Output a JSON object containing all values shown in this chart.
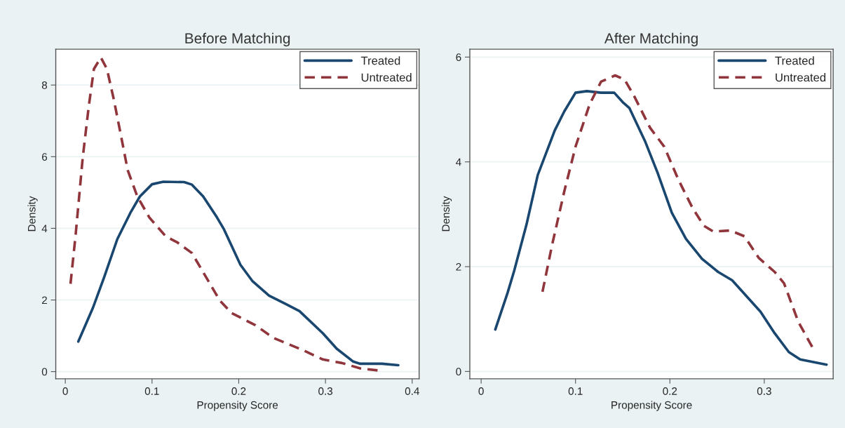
{
  "chart_data": [
    {
      "type": "line",
      "title": "Before Matching",
      "xlabel": "Propensity Score",
      "ylabel": "Density",
      "xlim": [
        -0.011,
        0.408
      ],
      "xticks": [
        0,
        0.1,
        0.2,
        0.3,
        0.4
      ],
      "ylim": [
        -0.2,
        9.0
      ],
      "yticks": [
        0,
        2,
        4,
        6,
        8
      ],
      "grid": "y",
      "legend": "top right",
      "series": [
        {
          "name": "Treated",
          "color": "#1a476f",
          "line_style": "solid",
          "x": [
            0.015,
            0.032,
            0.045,
            0.06,
            0.075,
            0.086,
            0.1,
            0.113,
            0.137,
            0.146,
            0.159,
            0.175,
            0.183,
            0.202,
            0.216,
            0.235,
            0.254,
            0.27,
            0.297,
            0.313,
            0.332,
            0.34,
            0.365,
            0.384
          ],
          "values": [
            0.84,
            1.79,
            2.65,
            3.7,
            4.43,
            4.89,
            5.23,
            5.3,
            5.29,
            5.22,
            4.89,
            4.3,
            3.97,
            2.98,
            2.52,
            2.12,
            1.89,
            1.69,
            1.07,
            0.64,
            0.28,
            0.22,
            0.22,
            0.18
          ]
        },
        {
          "name": "Untreated",
          "color": "#90353b",
          "line_style": "dashed",
          "x": [
            0.006,
            0.012,
            0.02,
            0.027,
            0.033,
            0.041,
            0.048,
            0.056,
            0.064,
            0.072,
            0.083,
            0.097,
            0.116,
            0.129,
            0.146,
            0.162,
            0.178,
            0.192,
            0.219,
            0.24,
            0.273,
            0.297,
            0.319,
            0.34,
            0.362
          ],
          "values": [
            2.45,
            3.84,
            5.95,
            7.4,
            8.45,
            8.77,
            8.45,
            7.59,
            6.61,
            5.62,
            4.89,
            4.3,
            3.77,
            3.61,
            3.31,
            2.65,
            1.99,
            1.63,
            1.3,
            0.94,
            0.61,
            0.34,
            0.24,
            0.09,
            0.03
          ]
        }
      ]
    },
    {
      "type": "line",
      "title": "After Matching",
      "xlabel": "Propensity Score",
      "ylabel": "Density",
      "xlim": [
        -0.012,
        0.373
      ],
      "xticks": [
        0,
        0.1,
        0.2,
        0.3
      ],
      "ylim": [
        -0.14,
        6.15
      ],
      "yticks": [
        0,
        2,
        4,
        6
      ],
      "grid": "y",
      "legend": "top right",
      "series": [
        {
          "name": "Treated",
          "color": "#1a476f",
          "line_style": "solid",
          "x": [
            0.015,
            0.028,
            0.035,
            0.048,
            0.06,
            0.078,
            0.088,
            0.1,
            0.112,
            0.127,
            0.141,
            0.15,
            0.157,
            0.174,
            0.187,
            0.202,
            0.217,
            0.234,
            0.251,
            0.266,
            0.296,
            0.311,
            0.326,
            0.338,
            0.366
          ],
          "values": [
            0.8,
            1.5,
            1.92,
            2.8,
            3.75,
            4.6,
            4.96,
            5.32,
            5.35,
            5.32,
            5.32,
            5.14,
            5.03,
            4.38,
            3.79,
            3.03,
            2.53,
            2.15,
            1.9,
            1.74,
            1.14,
            0.73,
            0.37,
            0.23,
            0.13
          ]
        },
        {
          "name": "Untreated",
          "color": "#90353b",
          "line_style": "dashed",
          "x": [
            0.065,
            0.075,
            0.088,
            0.1,
            0.115,
            0.127,
            0.142,
            0.152,
            0.162,
            0.179,
            0.194,
            0.209,
            0.224,
            0.236,
            0.246,
            0.264,
            0.279,
            0.294,
            0.311,
            0.321,
            0.336,
            0.351
          ],
          "values": [
            1.52,
            2.4,
            3.43,
            4.29,
            5.1,
            5.53,
            5.65,
            5.57,
            5.26,
            4.65,
            4.29,
            3.66,
            3.12,
            2.78,
            2.67,
            2.69,
            2.58,
            2.17,
            1.9,
            1.68,
            0.95,
            0.46
          ]
        }
      ]
    }
  ]
}
